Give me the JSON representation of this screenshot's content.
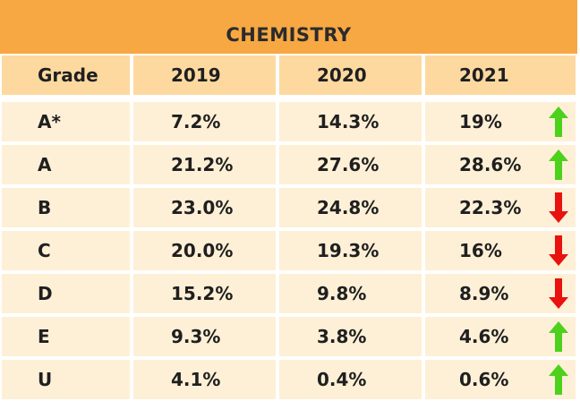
{
  "title": "CHEMISTRY",
  "headers": [
    "Grade",
    "2019",
    "2020",
    "2021"
  ],
  "rows": [
    {
      "grade": "A*",
      "y2019": "7.2%",
      "y2020": "14.3%",
      "y2021": "19%",
      "trend": "up"
    },
    {
      "grade": "A",
      "y2019": "21.2%",
      "y2020": "27.6%",
      "y2021": "28.6%",
      "trend": "up"
    },
    {
      "grade": "B",
      "y2019": "23.0%",
      "y2020": "24.8%",
      "y2021": "22.3%",
      "trend": "down"
    },
    {
      "grade": "C",
      "y2019": "20.0%",
      "y2020": "19.3%",
      "y2021": "16%",
      "trend": "down"
    },
    {
      "grade": "D",
      "y2019": "15.2%",
      "y2020": "9.8%",
      "y2021": "8.9%",
      "trend": "down"
    },
    {
      "grade": "E",
      "y2019": "9.3%",
      "y2020": "3.8%",
      "y2021": "4.6%",
      "trend": "up"
    },
    {
      "grade": "U",
      "y2019": "4.1%",
      "y2020": "0.4%",
      "y2021": "0.6%",
      "trend": "up"
    }
  ],
  "colors": {
    "up": "#4cd11c",
    "down": "#e8130f"
  }
}
